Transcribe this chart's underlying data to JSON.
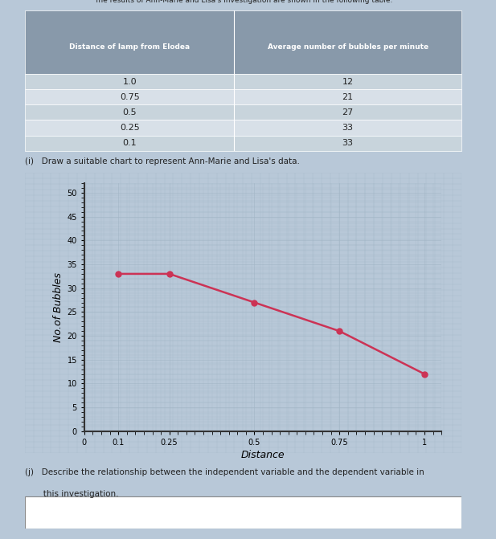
{
  "x": [
    0.1,
    0.25,
    0.5,
    0.75,
    1.0
  ],
  "y": [
    33,
    33,
    27,
    21,
    12
  ],
  "distances": [
    "1.0",
    "0.75",
    "0.5",
    "0.25",
    "0.1"
  ],
  "bubbles": [
    "12",
    "21",
    "27",
    "33",
    "33"
  ],
  "xlabel": "Distance",
  "ylabel": "No.of Bubbles",
  "line_color": "#cc3355",
  "marker_color": "#cc3355",
  "xlim": [
    0,
    1.05
  ],
  "ylim": [
    0,
    52
  ],
  "yticks": [
    0,
    5,
    10,
    15,
    20,
    25,
    30,
    35,
    40,
    45,
    50
  ],
  "xticks": [
    0,
    0.1,
    0.25,
    0.5,
    0.75,
    1.0
  ],
  "xtick_labels": [
    "0",
    "0.1",
    "0.25",
    "0.5",
    "0.75",
    "1"
  ],
  "page_bg": "#b8c8d8",
  "paper_bg": "#d0dce8",
  "graph_bg": "#ccd8e4",
  "grid_color": "#a0b4c4",
  "table_header_bg": "#8899aa",
  "table_row_bg1": "#c8d4dc",
  "table_row_bg2": "#d8e0e8",
  "text_color": "#222222",
  "header_text": "The results of Ann-Marie and Lisa's investigation are shown in the following table.",
  "col1_header": "Distance of lamp from Elodea",
  "col2_header": "Average number of bubbles per minute",
  "question_i": "(i)   Draw a suitable chart to represent Ann-Marie and Lisa's data.",
  "question_j": "(j)   Describe the relationship between the independent variable and the dependent variable in",
  "question_j2": "       this investigation."
}
